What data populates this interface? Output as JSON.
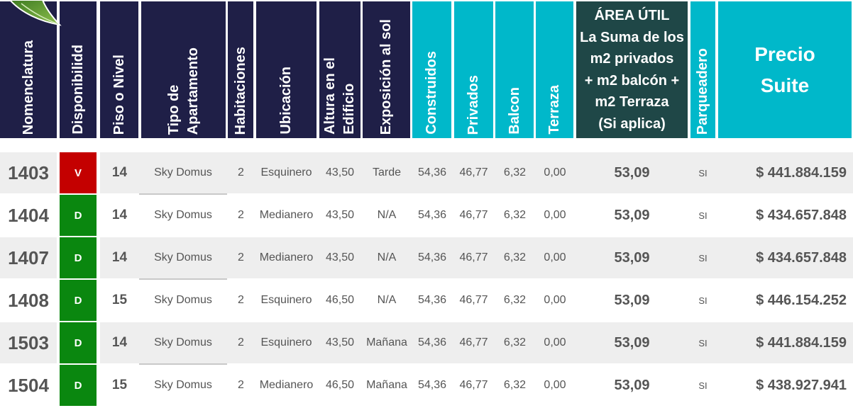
{
  "icons": {
    "decoration": "leaf-icon"
  },
  "colors": {
    "header_dark": "#1f1f47",
    "header_light": "#00b8ca",
    "header_area": "#1f4747",
    "row_alternate": "#eeeeee",
    "text": "#555555",
    "status": {
      "V": "#c40000",
      "D": "#0a870f"
    }
  },
  "header": {
    "nomenclatura": "Nomenclatura",
    "disponibilidad": "Disponibilidd",
    "piso": "Piso o Nivel",
    "tipo": [
      "Tipo de",
      "Apartamento"
    ],
    "habitaciones": "Habitaciones",
    "ubicacion": "Ubicación",
    "altura": [
      "Altura en el",
      "Edificio"
    ],
    "exposicion": "Exposición al sol",
    "construidos": "Construidos",
    "privados": "Privados",
    "balcon": "Balcon",
    "terraza": "Terraza",
    "area_util": [
      "ÁREA ÚTIL",
      "La Suma de los",
      "m2 privados",
      "+ m2 balcón +",
      "m2 Terraza",
      "(Si aplica)"
    ],
    "parqueadero": "Parqueadero",
    "precio": [
      "Precio",
      "Suite"
    ]
  },
  "rows": [
    {
      "nomenclatura": "1403",
      "disponibilidad": "V",
      "piso": "14",
      "tipo": "Sky Domus",
      "habitaciones": "2",
      "ubicacion": "Esquinero",
      "altura": "43,50",
      "exposicion": "Tarde",
      "construidos": "54,36",
      "privados": "46,77",
      "balcon": "6,32",
      "terraza": "0,00",
      "area_util": "53,09",
      "parqueadero": "SI",
      "precio": "$ 441.884.159"
    },
    {
      "nomenclatura": "1404",
      "disponibilidad": "D",
      "piso": "14",
      "tipo": "Sky Domus",
      "habitaciones": "2",
      "ubicacion": "Medianero",
      "altura": "43,50",
      "exposicion": "N/A",
      "construidos": "54,36",
      "privados": "46,77",
      "balcon": "6,32",
      "terraza": "0,00",
      "area_util": "53,09",
      "parqueadero": "SI",
      "precio": "$ 434.657.848"
    },
    {
      "nomenclatura": "1407",
      "disponibilidad": "D",
      "piso": "14",
      "tipo": "Sky Domus",
      "habitaciones": "2",
      "ubicacion": "Medianero",
      "altura": "43,50",
      "exposicion": "N/A",
      "construidos": "54,36",
      "privados": "46,77",
      "balcon": "6,32",
      "terraza": "0,00",
      "area_util": "53,09",
      "parqueadero": "SI",
      "precio": "$ 434.657.848"
    },
    {
      "nomenclatura": "1408",
      "disponibilidad": "D",
      "piso": "15",
      "tipo": "Sky Domus",
      "habitaciones": "2",
      "ubicacion": "Esquinero",
      "altura": "46,50",
      "exposicion": "N/A",
      "construidos": "54,36",
      "privados": "46,77",
      "balcon": "6,32",
      "terraza": "0,00",
      "area_util": "53,09",
      "parqueadero": "SI",
      "precio": "$ 446.154.252"
    },
    {
      "nomenclatura": "1503",
      "disponibilidad": "D",
      "piso": "14",
      "tipo": "Sky Domus",
      "habitaciones": "2",
      "ubicacion": "Esquinero",
      "altura": "43,50",
      "exposicion": "Mañana",
      "construidos": "54,36",
      "privados": "46,77",
      "balcon": "6,32",
      "terraza": "0,00",
      "area_util": "53,09",
      "parqueadero": "SI",
      "precio": "$ 441.884.159"
    },
    {
      "nomenclatura": "1504",
      "disponibilidad": "D",
      "piso": "15",
      "tipo": "Sky Domus",
      "habitaciones": "2",
      "ubicacion": "Medianero",
      "altura": "46,50",
      "exposicion": "Mañana",
      "construidos": "54,36",
      "privados": "46,77",
      "balcon": "6,32",
      "terraza": "0,00",
      "area_util": "53,09",
      "parqueadero": "SI",
      "precio": "$ 438.927.941"
    }
  ]
}
